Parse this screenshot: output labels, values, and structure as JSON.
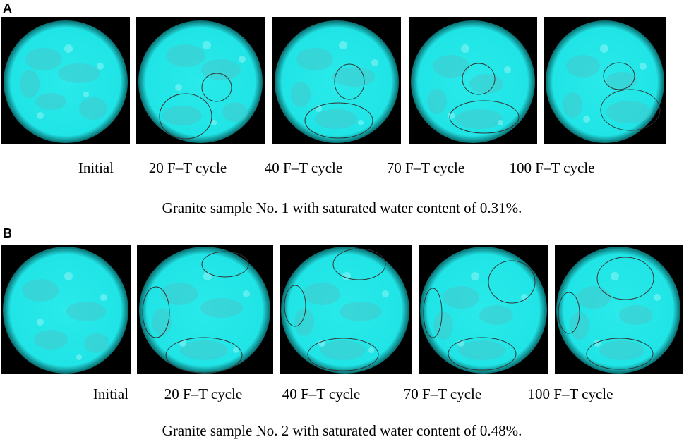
{
  "panels": [
    {
      "letter": "A",
      "captions": [
        "Initial",
        "20 F–T cycle",
        "40 F–T cycle",
        "70 F–T cycle",
        "100 F–T cycle"
      ],
      "sample_caption": "Granite sample No. 1 with saturated water content of 0.31%."
    },
    {
      "letter": "B",
      "captions": [
        "Initial",
        "20 F–T cycle",
        "40 F–T cycle",
        "70 F–T cycle",
        "100 F–T cycle"
      ],
      "sample_caption": "Granite sample No. 2 with saturated water content of 0.48%."
    }
  ],
  "colors": {
    "sample_fill": "#1ee8e8",
    "sample_mottle_dark": "#3cc4c8",
    "sample_mottle_light": "#8ff6f6",
    "background": "#000000",
    "marker_ellipse": "#333333"
  }
}
